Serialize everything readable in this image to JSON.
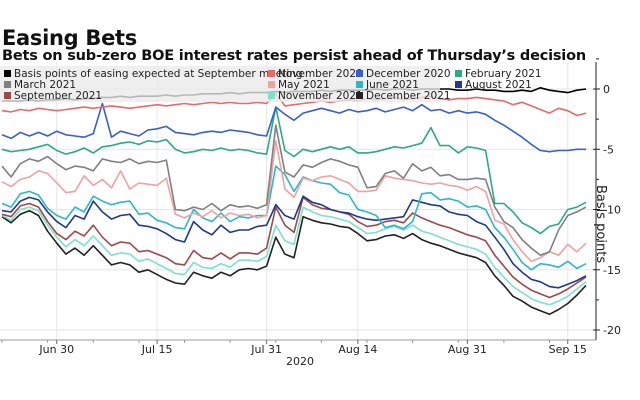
{
  "title": "Easing Bets",
  "subtitle": "Bets on sub-zero BOE interest rates persist ahead of Thursday’s decision",
  "chart_data": {
    "type": "line",
    "title": "Easing Bets",
    "subtitle": "Bets on sub-zero BOE interest rates persist ahead of Thursday’s decision",
    "xlabel": "2020",
    "ylabel": "Basis points",
    "ylim": [
      -20.5,
      2.5
    ],
    "yticks": [
      0,
      -5,
      -10,
      -15,
      -20
    ],
    "ytick_labels": [
      "0",
      "-5",
      "-10",
      "-15",
      "-20"
    ],
    "xtick_labels": [
      "Jun 30",
      "Jul 15",
      "Jul 31",
      "Aug 14",
      "Aug 31",
      "Sep 15"
    ],
    "xtick_index": [
      6,
      17,
      29,
      39,
      51,
      62
    ],
    "grid": true,
    "legend_position": "top-left",
    "y_axis_side": "right",
    "series": [
      {
        "name": "Basis points of easing expected at September meeting",
        "color": "#000000",
        "values": [
          -1.0,
          -1.0,
          -1.0,
          -0.9,
          -1.0,
          -0.9,
          -0.9,
          -0.8,
          -0.9,
          -0.8,
          -0.8,
          -0.7,
          -0.7,
          -0.6,
          -0.7,
          -0.6,
          -0.6,
          -0.6,
          -0.5,
          -0.6,
          -0.5,
          -0.5,
          -0.4,
          -0.4,
          -0.4,
          -0.3,
          -0.4,
          -0.3,
          -0.3,
          -0.3,
          -0.2,
          -0.3,
          -0.2,
          -0.2,
          -0.2,
          -0.1,
          -0.2,
          -0.1,
          -0.1,
          -0.1,
          -0.1,
          0.0,
          -0.1,
          0.0,
          0.0,
          -0.1,
          0.0,
          0.0,
          0.0,
          0.0,
          -0.1,
          -0.1,
          0.0,
          -0.1,
          -0.1,
          -0.2,
          -0.2,
          -0.1,
          -0.2,
          0.1,
          -0.1,
          -0.2,
          -0.3,
          -0.1,
          0.0
        ]
      },
      {
        "name": "November 2020",
        "color": "#e8696b",
        "values": [
          -1.8,
          -1.9,
          -1.7,
          -1.8,
          -1.6,
          -1.7,
          -1.8,
          -1.7,
          -1.6,
          -1.5,
          -1.6,
          -1.5,
          -1.4,
          -1.5,
          -1.6,
          -1.5,
          -1.4,
          -1.3,
          -1.4,
          -1.3,
          -1.2,
          -1.3,
          -1.2,
          -1.1,
          -1.2,
          -1.1,
          -1.2,
          -1.2,
          -1.1,
          -1.2,
          -0.4,
          -1.4,
          -1.3,
          -1.2,
          -1.1,
          -1.0,
          -1.1,
          -1.0,
          -0.9,
          -1.0,
          -0.8,
          -0.9,
          -0.8,
          -0.7,
          -0.9,
          -0.8,
          -0.7,
          -0.6,
          -0.8,
          -0.9,
          -0.8,
          -0.8,
          -0.7,
          -0.8,
          -0.9,
          -1.0,
          -1.3,
          -1.1,
          -1.4,
          -1.7,
          -2.0,
          -1.6,
          -1.8,
          -2.2,
          -2.0
        ]
      },
      {
        "name": "December 2020",
        "color": "#3a5fcd",
        "values": [
          -3.8,
          -4.1,
          -3.6,
          -3.9,
          -3.6,
          -3.9,
          -3.5,
          -3.8,
          -3.9,
          -4.0,
          -3.7,
          -1.2,
          -4.0,
          -3.5,
          -3.7,
          -3.9,
          -3.4,
          -3.3,
          -3.1,
          -3.6,
          -3.7,
          -3.8,
          -3.6,
          -3.5,
          -3.6,
          -3.4,
          -3.5,
          -3.6,
          -3.8,
          -3.9,
          -1.5,
          -2.1,
          -2.6,
          -2.0,
          -1.8,
          -1.6,
          -1.8,
          -2.0,
          -1.7,
          -1.9,
          -1.8,
          -1.6,
          -1.9,
          -1.7,
          -1.5,
          -1.8,
          -1.3,
          -1.8,
          -1.7,
          -2.0,
          -1.8,
          -2.0,
          -1.9,
          -2.1,
          -2.6,
          -3.0,
          -3.5,
          -4.0,
          -4.6,
          -5.1,
          -5.2,
          -5.1,
          -5.1,
          -5.0,
          -5.0
        ]
      },
      {
        "name": "February 2021",
        "color": "#2bab7f",
        "values": [
          -5.0,
          -5.2,
          -5.1,
          -5.0,
          -4.8,
          -4.6,
          -5.1,
          -5.4,
          -5.2,
          -4.9,
          -5.3,
          -4.8,
          -4.7,
          -4.5,
          -4.4,
          -4.6,
          -4.3,
          -4.4,
          -4.2,
          -5.0,
          -5.3,
          -5.2,
          -5.0,
          -5.1,
          -4.9,
          -5.1,
          -5.0,
          -5.1,
          -5.3,
          -5.4,
          -1.5,
          -5.1,
          -5.6,
          -5.0,
          -5.2,
          -5.0,
          -4.8,
          -5.0,
          -4.8,
          -5.3,
          -5.3,
          -5.2,
          -5.0,
          -4.8,
          -4.9,
          -4.7,
          -4.5,
          -3.2,
          -4.7,
          -4.7,
          -5.3,
          -4.8,
          -4.9,
          -5.1,
          -9.5,
          -9.5,
          -10.2,
          -11.1,
          -11.5,
          -12.0,
          -11.4,
          -11.2,
          -10.0,
          -9.8,
          -9.4
        ]
      },
      {
        "name": "March 2021",
        "color": "#808080",
        "values": [
          -6.4,
          -7.3,
          -6.2,
          -5.8,
          -6.0,
          -5.6,
          -6.2,
          -6.7,
          -6.4,
          -6.5,
          -6.8,
          -5.8,
          -6.0,
          -6.1,
          -5.8,
          -6.2,
          -6.0,
          -6.1,
          -5.9,
          -10.0,
          -10.1,
          -9.8,
          -10.0,
          -9.5,
          -10.1,
          -9.6,
          -9.8,
          -9.7,
          -9.9,
          -9.6,
          -3.0,
          -6.9,
          -7.3,
          -6.3,
          -6.5,
          -6.1,
          -5.8,
          -6.0,
          -6.3,
          -6.5,
          -8.2,
          -8.1,
          -7.0,
          -6.8,
          -7.4,
          -6.2,
          -6.8,
          -6.5,
          -7.2,
          -7.1,
          -7.5,
          -7.5,
          -7.4,
          -7.5,
          -9.8,
          -11.0,
          -11.5,
          -12.5,
          -13.2,
          -13.8,
          -13.5,
          -11.7,
          -10.5,
          -10.2,
          -9.8
        ]
      },
      {
        "name": "May 2021",
        "color": "#f2a0a0",
        "values": [
          -7.7,
          -8.1,
          -7.5,
          -7.3,
          -6.8,
          -7.0,
          -7.8,
          -8.6,
          -8.5,
          -7.2,
          -8.0,
          -7.5,
          -8.2,
          -6.8,
          -8.3,
          -7.8,
          -7.9,
          -8.0,
          -7.4,
          -10.4,
          -10.7,
          -10.3,
          -10.6,
          -10.1,
          -10.7,
          -10.3,
          -10.5,
          -10.4,
          -10.7,
          -10.5,
          -4.3,
          -8.3,
          -9.0,
          -7.4,
          -7.6,
          -7.3,
          -7.2,
          -7.5,
          -7.8,
          -8.5,
          -8.5,
          -8.4,
          -7.2,
          -7.4,
          -7.5,
          -7.6,
          -7.8,
          -7.9,
          -7.8,
          -8.0,
          -8.1,
          -8.4,
          -8.1,
          -8.5,
          -10.9,
          -11.2,
          -12.5,
          -13.5,
          -14.3,
          -14.0,
          -13.5,
          -13.8,
          -12.9,
          -13.5,
          -12.8
        ]
      },
      {
        "name": "June 2021",
        "color": "#2cb8c7",
        "values": [
          -9.5,
          -9.8,
          -8.7,
          -8.5,
          -8.8,
          -9.9,
          -10.5,
          -10.8,
          -9.8,
          -10.2,
          -8.9,
          -9.3,
          -9.6,
          -9.4,
          -9.3,
          -10.4,
          -10.3,
          -10.9,
          -11.1,
          -11.5,
          -11.6,
          -10.0,
          -10.7,
          -11.0,
          -10.3,
          -11.0,
          -10.6,
          -10.7,
          -10.5,
          -10.5,
          -6.4,
          -7.1,
          -8.5,
          -7.3,
          -7.6,
          -7.8,
          -7.9,
          -8.6,
          -8.8,
          -10.0,
          -10.2,
          -10.5,
          -11.5,
          -11.3,
          -11.6,
          -11.0,
          -8.7,
          -8.6,
          -9.2,
          -9.1,
          -9.3,
          -9.8,
          -9.7,
          -10.0,
          -11.5,
          -12.3,
          -13.3,
          -14.4,
          -15.0,
          -14.5,
          -14.6,
          -14.8,
          -14.3,
          -14.9,
          -14.5
        ]
      },
      {
        "name": "August 2021",
        "color": "#1f3a8a",
        "values": [
          -10.1,
          -10.2,
          -9.3,
          -9.0,
          -9.2,
          -10.2,
          -11.0,
          -11.5,
          -10.5,
          -10.8,
          -9.3,
          -10.2,
          -10.8,
          -10.5,
          -10.4,
          -11.3,
          -11.4,
          -11.6,
          -12.0,
          -12.5,
          -12.7,
          -11.0,
          -11.7,
          -12.1,
          -11.3,
          -11.9,
          -11.7,
          -11.7,
          -11.4,
          -11.3,
          -9.6,
          -10.5,
          -10.8,
          -8.9,
          -9.4,
          -9.6,
          -10.0,
          -10.2,
          -10.3,
          -10.6,
          -10.8,
          -10.9,
          -10.8,
          -10.7,
          -10.6,
          -9.2,
          -9.4,
          -9.6,
          -9.7,
          -10.2,
          -10.4,
          -10.5,
          -11.0,
          -11.3,
          -12.3,
          -13.3,
          -14.5,
          -15.2,
          -15.8,
          -16.0,
          -16.4,
          -16.5,
          -16.2,
          -15.9,
          -15.5
        ]
      },
      {
        "name": "September 2021",
        "color": "#9b4a4a",
        "values": [
          -10.4,
          -10.6,
          -9.7,
          -9.5,
          -9.8,
          -11.0,
          -12.0,
          -12.5,
          -11.8,
          -12.2,
          -11.3,
          -12.3,
          -13.0,
          -12.7,
          -12.8,
          -13.5,
          -13.4,
          -13.7,
          -14.0,
          -14.5,
          -14.6,
          -13.4,
          -14.0,
          -14.1,
          -13.6,
          -14.1,
          -13.6,
          -13.6,
          -13.7,
          -13.2,
          -9.8,
          -11.3,
          -11.9,
          -9.0,
          -9.6,
          -9.9,
          -10.0,
          -10.2,
          -10.4,
          -11.0,
          -11.4,
          -11.3,
          -11.0,
          -10.9,
          -11.1,
          -10.3,
          -10.7,
          -11.0,
          -11.3,
          -11.5,
          -11.8,
          -12.1,
          -12.3,
          -12.6,
          -13.8,
          -14.7,
          -15.6,
          -16.2,
          -16.7,
          -17.0,
          -17.3,
          -17.0,
          -16.6,
          -16.1,
          -15.6
        ]
      },
      {
        "name": "November 2021",
        "color": "#7fe0cc",
        "values": [
          -10.5,
          -10.9,
          -10.0,
          -9.8,
          -10.1,
          -11.3,
          -12.3,
          -13.1,
          -12.5,
          -13.0,
          -12.2,
          -13.0,
          -13.8,
          -13.6,
          -13.7,
          -14.3,
          -14.1,
          -14.5,
          -14.9,
          -15.3,
          -15.4,
          -14.4,
          -14.8,
          -14.9,
          -14.5,
          -14.8,
          -14.2,
          -14.2,
          -14.3,
          -13.9,
          -11.3,
          -12.6,
          -12.9,
          -9.8,
          -10.2,
          -10.5,
          -10.6,
          -10.8,
          -11.0,
          -11.5,
          -12.0,
          -11.9,
          -11.6,
          -11.4,
          -11.7,
          -11.3,
          -11.8,
          -12.0,
          -12.3,
          -12.6,
          -12.9,
          -13.1,
          -13.3,
          -13.7,
          -14.8,
          -15.6,
          -16.4,
          -16.9,
          -17.4,
          -17.7,
          -17.9,
          -17.6,
          -17.2,
          -16.6,
          -16.0
        ]
      },
      {
        "name": "December 2021",
        "color": "#222222",
        "values": [
          -10.6,
          -11.1,
          -10.4,
          -10.1,
          -10.5,
          -11.8,
          -12.8,
          -13.7,
          -13.2,
          -13.8,
          -13.0,
          -13.8,
          -14.6,
          -14.4,
          -14.6,
          -15.2,
          -15.0,
          -15.4,
          -15.8,
          -16.1,
          -16.2,
          -15.2,
          -15.5,
          -15.7,
          -15.2,
          -15.5,
          -15.0,
          -14.9,
          -15.0,
          -14.7,
          -12.3,
          -13.7,
          -14.0,
          -10.6,
          -10.9,
          -11.1,
          -11.2,
          -11.4,
          -11.5,
          -12.0,
          -12.6,
          -12.5,
          -12.2,
          -12.1,
          -12.4,
          -12.0,
          -12.5,
          -12.8,
          -13.0,
          -13.3,
          -13.6,
          -13.8,
          -14.0,
          -14.4,
          -15.5,
          -16.3,
          -17.2,
          -17.6,
          -18.1,
          -18.4,
          -18.7,
          -18.3,
          -17.8,
          -17.1,
          -16.3
        ]
      }
    ]
  }
}
